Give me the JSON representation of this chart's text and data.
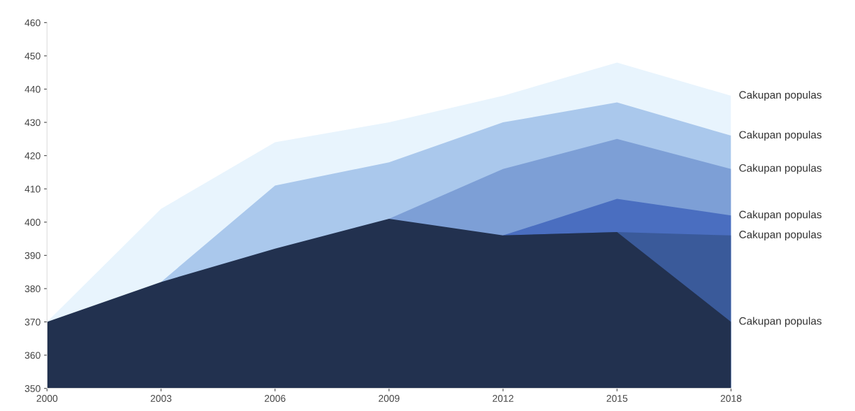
{
  "chart_data": {
    "type": "area",
    "x": [
      2000,
      2003,
      2006,
      2009,
      2012,
      2015,
      2018
    ],
    "series": [
      {
        "name": "Cakupan populas",
        "color": "#e8f4fd",
        "values": [
          370,
          404,
          424,
          430,
          438,
          448,
          438
        ]
      },
      {
        "name": "Cakupan populas",
        "color": "#aac8ec",
        "values": [
          null,
          382,
          411,
          418,
          430,
          436,
          426
        ]
      },
      {
        "name": "Cakupan populas",
        "color": "#7d9fd6",
        "values": [
          null,
          null,
          null,
          401,
          416,
          425,
          416
        ]
      },
      {
        "name": "Cakupan populas",
        "color": "#4a6ec0",
        "values": [
          null,
          null,
          null,
          null,
          396,
          407,
          402
        ]
      },
      {
        "name": "Cakupan populas",
        "color": "#3a5a9a",
        "values": [
          null,
          null,
          null,
          null,
          396,
          397,
          396
        ]
      },
      {
        "name": "Cakupan populas",
        "color": "#22314f",
        "values": [
          370,
          382,
          392,
          401,
          396,
          397,
          370
        ]
      }
    ],
    "xlim": [
      2000,
      2018
    ],
    "xticks": [
      2000,
      2003,
      2006,
      2009,
      2012,
      2015,
      2018
    ],
    "ylim": [
      350,
      460
    ],
    "yticks": [
      350,
      360,
      370,
      380,
      390,
      400,
      410,
      420,
      430,
      440,
      450,
      460
    ],
    "grid": false,
    "legend": false
  }
}
